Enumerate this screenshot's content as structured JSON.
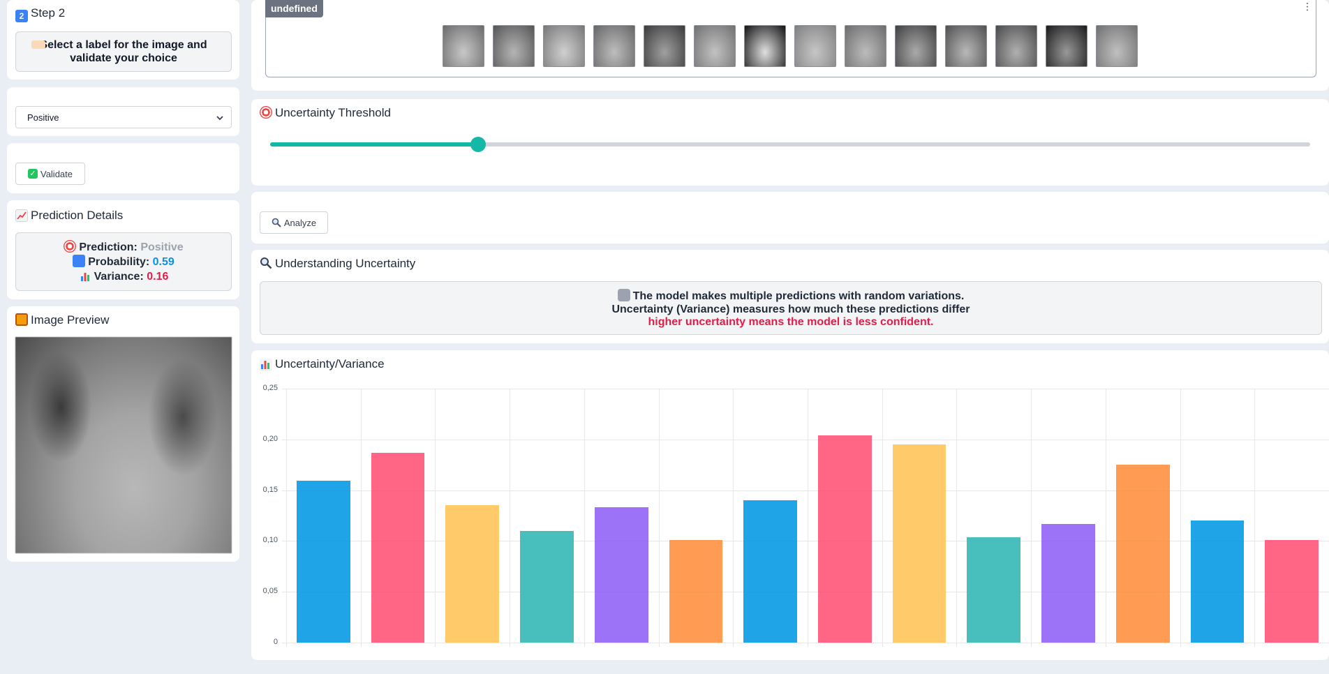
{
  "left": {
    "step_title": "Step 2",
    "step_badge": "2",
    "instruction": "Select a label for the image and validate your choice",
    "select_value": "Positive",
    "validate_label": "Validate",
    "prediction_title": "Prediction Details",
    "prediction_label": "Prediction:",
    "prediction_value": "Positive",
    "probability_label": "Probability:",
    "probability_value": "0.59",
    "variance_label": "Variance:",
    "variance_value": "0.16",
    "preview_title": "Image Preview"
  },
  "gallery": {
    "tag": "undefined",
    "thumb_count": 14
  },
  "threshold": {
    "title": "Uncertainty Threshold",
    "value_fraction": 0.2
  },
  "analyze_label": "Analyze",
  "understanding": {
    "title": "Understanding Uncertainty",
    "line1": "The model makes multiple predictions with random variations.",
    "line2": "Uncertainty (Variance) measures how much these predictions differ",
    "line3": "higher uncertainty means the model is less confident."
  },
  "colors": {
    "accent": "#14b8a6",
    "blue": "#0e8fe0",
    "red": "#e11d48",
    "muted": "#9ca3af"
  },
  "chart_data": {
    "type": "bar",
    "title": "Uncertainty/Variance",
    "ylim": [
      0,
      0.25
    ],
    "yticks": [
      "0",
      "0,05",
      "0,10",
      "0,15",
      "0,20",
      "0,25"
    ],
    "values": [
      0.159,
      0.187,
      0.135,
      0.11,
      0.133,
      0.101,
      0.14,
      0.204,
      0.195,
      0.104,
      0.117,
      0.175,
      0.12,
      0.101
    ],
    "colors": [
      "#069be5",
      "#ff5577",
      "#ffc65a",
      "#35b9b6",
      "#9263f7",
      "#ff9140",
      "#069be5",
      "#ff5577",
      "#ffc65a",
      "#35b9b6",
      "#9263f7",
      "#ff9140",
      "#069be5",
      "#ff5577"
    ]
  }
}
